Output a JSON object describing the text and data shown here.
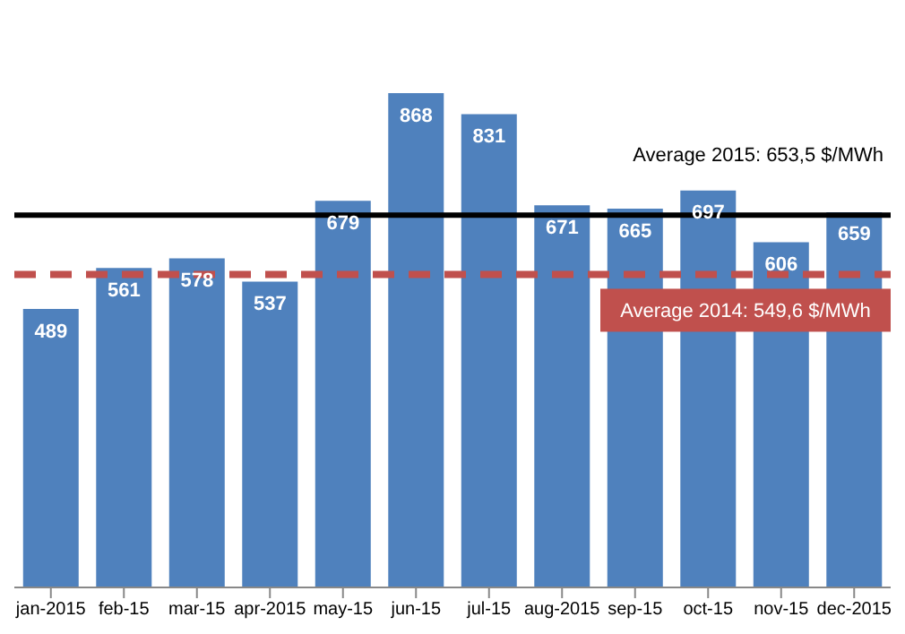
{
  "chart_data": {
    "type": "bar",
    "categories": [
      "jan-2015",
      "feb-15",
      "mar-15",
      "apr-2015",
      "may-15",
      "jun-15",
      "jul-15",
      "aug-2015",
      "sep-15",
      "oct-15",
      "nov-15",
      "dec-2015"
    ],
    "values": [
      489,
      561,
      578,
      537,
      679,
      868,
      831,
      671,
      665,
      697,
      606,
      659
    ],
    "color": "#4f81bd",
    "data_labels": true,
    "grid": false,
    "legend": false,
    "ref_lines": [
      {
        "axis": "y",
        "value": 653.5,
        "label": "Average 2015: 653,5 $/MWh",
        "color": "#000000",
        "line_style": "solid"
      },
      {
        "axis": "y",
        "value": 549.6,
        "label": "Average 2014: 549,6 $/MWh",
        "color": "#c0504d",
        "line_style": "dashed"
      }
    ]
  }
}
